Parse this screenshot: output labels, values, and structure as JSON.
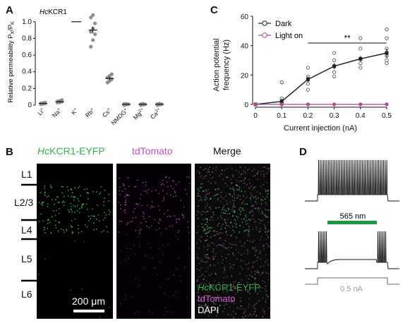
{
  "panels": {
    "A": {
      "label": "A",
      "protein": "HcKCR1",
      "protein_prefix": "Hc",
      "protein_suffix": "KCR1",
      "ylabel": "Relative permeability P",
      "ylabel_sub": "X",
      "ylabel_suffix": "/P",
      "ylabel_sub2": "K",
      "chart_data": {
        "type": "scatter",
        "categories": [
          "Li+",
          "Na+",
          "K+",
          "Rb+",
          "Cs+",
          "NMDG+",
          "Mg2+",
          "Ca2+"
        ],
        "category_labels": [
          {
            "base": "Li",
            "sup": "+"
          },
          {
            "base": "Na",
            "sup": "+"
          },
          {
            "base": "K",
            "sup": "+"
          },
          {
            "base": "Rb",
            "sup": "+"
          },
          {
            "base": "Cs",
            "sup": "+"
          },
          {
            "base": "NMDG",
            "sup": "+"
          },
          {
            "base": "Mg",
            "sup": "2+"
          },
          {
            "base": "Ca",
            "sup": "2+"
          }
        ],
        "means": [
          0.02,
          0.04,
          1.0,
          0.9,
          0.32,
          0.01,
          0.01,
          0.01
        ],
        "sem": [
          0.005,
          0.01,
          0,
          0.04,
          0.02,
          0.003,
          0.003,
          0.004
        ],
        "points": [
          [
            0.01,
            0.015,
            0.02,
            0.02,
            0.025,
            0.03
          ],
          [
            0.03,
            0.035,
            0.04,
            0.045,
            0.05,
            0.06
          ],
          [],
          [
            0.7,
            0.78,
            0.85,
            0.88,
            0.92,
            0.98,
            1.05,
            1.08
          ],
          [
            0.27,
            0.29,
            0.31,
            0.33,
            0.35,
            0.37
          ],
          [
            0.0,
            0.005,
            0.01,
            0.012,
            0.015
          ],
          [
            0.0,
            0.005,
            0.008,
            0.01,
            0.015
          ],
          [
            0.0,
            0.005,
            0.01,
            0.012,
            0.018
          ]
        ],
        "yticks": [
          0,
          0.2,
          0.4,
          0.6,
          0.8,
          1.0
        ],
        "ytick_labels": [
          "0",
          "0.2",
          "0.4",
          "0.6",
          "0.8",
          "1.0"
        ],
        "ylim": [
          0,
          1.1
        ],
        "point_color": "#8e8e8e"
      }
    },
    "C": {
      "label": "C",
      "chart_data": {
        "type": "line",
        "xlabel": "Current injection (nA)",
        "ylabel_line1": "Action potential",
        "ylabel_line2": "frequency (Hz)",
        "x": [
          0,
          0.1,
          0.2,
          0.3,
          0.4,
          0.5
        ],
        "xtick_labels": [
          "0",
          "0.1",
          "0.2",
          "0.3",
          "0.4",
          "0.5"
        ],
        "yticks": [
          0,
          20,
          40,
          60
        ],
        "ytick_labels": [
          "0",
          "20",
          "40",
          "60"
        ],
        "xlim": [
          0,
          0.5
        ],
        "ylim": [
          0,
          60
        ],
        "series": [
          {
            "name": "Dark",
            "color": "#222222",
            "values": [
              0,
              2,
              17,
              26,
              31,
              35
            ],
            "sem": [
              0,
              2,
              2,
              2,
              2,
              3
            ],
            "points": [
              [
                0,
                0,
                0,
                0,
                0
              ],
              [
                0,
                0,
                1,
                4,
                15
              ],
              [
                10,
                14,
                17,
                19,
                25
              ],
              [
                19,
                22,
                26,
                30,
                35
              ],
              [
                25,
                28,
                31,
                38,
                45
              ],
              [
                28,
                30,
                33,
                38,
                45,
                51
              ]
            ]
          },
          {
            "name": "Light on",
            "color": "#b0489c",
            "values": [
              0,
              0,
              0,
              0,
              0,
              0
            ]
          }
        ],
        "significance": {
          "text": "**",
          "from": 0.2,
          "to": 0.5
        }
      }
    },
    "B": {
      "label": "B",
      "col1_prefix": "Hc",
      "col1_suffix": "KCR1-EYFP",
      "col2": "tdTomato",
      "col3": "Merge",
      "layers": [
        "L1",
        "L2/3",
        "L4",
        "L5",
        "L6"
      ],
      "scale_bar": "200 μm",
      "legend_eyfp_prefix": "Hc",
      "legend_eyfp_suffix": "KCR1-EYFP",
      "legend_tdtomato": "tdTomato",
      "legend_dapi": "DAPI",
      "colors": {
        "eyfp": "#31b24a",
        "tdtomato": "#c050c0",
        "dapi": "#ffffff"
      }
    },
    "D": {
      "label": "D",
      "light_label": "565 nm",
      "light_color": "#1a9a3c",
      "current_label": "0.5 nA",
      "current_color": "#9a9a9a"
    }
  }
}
